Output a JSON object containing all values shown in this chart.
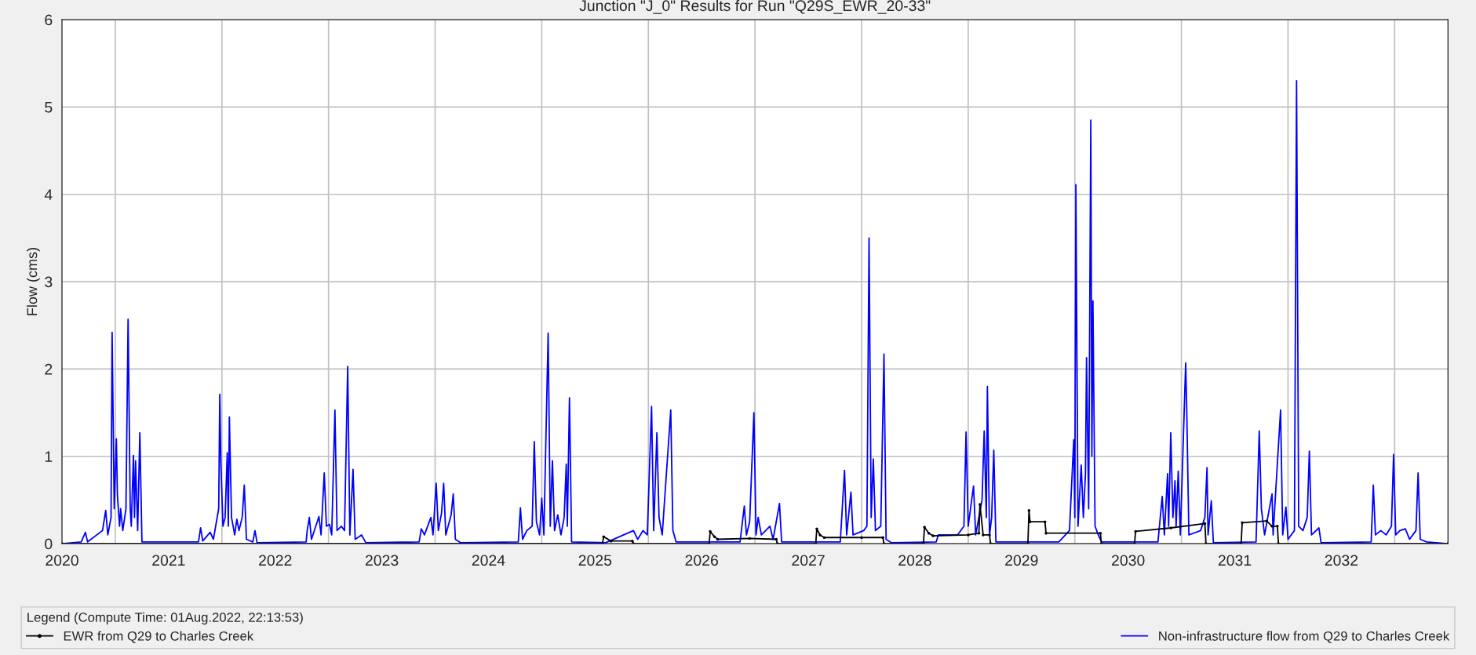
{
  "chart_data": {
    "type": "line",
    "title": "Junction \"J_0\" Results for Run \"Q29S_EWR_20-33\"",
    "ylabel": "Flow (cms)",
    "xlim": [
      2020.5,
      2033.5
    ],
    "ylim": [
      0,
      6
    ],
    "yticks": [
      0,
      1,
      2,
      3,
      4,
      5,
      6
    ],
    "xticks": [
      {
        "value": 2020.5,
        "label": "2020"
      },
      {
        "value": 2021,
        "label": null
      },
      {
        "value": 2021.5,
        "label": "2021"
      },
      {
        "value": 2022,
        "label": null
      },
      {
        "value": 2022.5,
        "label": "2022"
      },
      {
        "value": 2023,
        "label": null
      },
      {
        "value": 2023.5,
        "label": "2023"
      },
      {
        "value": 2024,
        "label": null
      },
      {
        "value": 2024.5,
        "label": "2024"
      },
      {
        "value": 2025,
        "label": null
      },
      {
        "value": 2025.5,
        "label": "2025"
      },
      {
        "value": 2026,
        "label": null
      },
      {
        "value": 2026.5,
        "label": "2026"
      },
      {
        "value": 2027,
        "label": null
      },
      {
        "value": 2027.5,
        "label": "2027"
      },
      {
        "value": 2028,
        "label": null
      },
      {
        "value": 2028.5,
        "label": "2028"
      },
      {
        "value": 2029,
        "label": null
      },
      {
        "value": 2029.5,
        "label": "2029"
      },
      {
        "value": 2030,
        "label": null
      },
      {
        "value": 2030.5,
        "label": "2030"
      },
      {
        "value": 2031,
        "label": null
      },
      {
        "value": 2031.5,
        "label": "2031"
      },
      {
        "value": 2032,
        "label": null
      },
      {
        "value": 2032.5,
        "label": "2032"
      },
      {
        "value": 2033,
        "label": null
      }
    ],
    "grid": true,
    "legend": "bottom",
    "legend_title": "Legend (Compute Time: 01Aug.2022, 22:13:53)",
    "series": [
      {
        "name": "Non-infrastructure flow from Q29 to Charles Creek",
        "color": "#0000ff",
        "marker": "none",
        "x": [
          2020.5,
          2020.68,
          2020.72,
          2020.74,
          2020.88,
          2020.91,
          2020.93,
          2020.96,
          2020.97,
          2020.99,
          2021.01,
          2021.02,
          2021.04,
          2021.05,
          2021.07,
          2021.1,
          2021.12,
          2021.14,
          2021.15,
          2021.17,
          2021.18,
          2021.19,
          2021.21,
          2021.23,
          2021.25,
          2021.78,
          2021.8,
          2021.82,
          2021.89,
          2021.92,
          2021.97,
          2021.98,
          2021.99,
          2022.01,
          2022.03,
          2022.05,
          2022.06,
          2022.07,
          2022.09,
          2022.12,
          2022.14,
          2022.16,
          2022.19,
          2022.21,
          2022.23,
          2022.29,
          2022.31,
          2022.33,
          2022.79,
          2022.8,
          2022.82,
          2022.84,
          2022.91,
          2022.93,
          2022.96,
          2022.98,
          2023.01,
          2023.03,
          2023.06,
          2023.08,
          2023.12,
          2023.15,
          2023.18,
          2023.2,
          2023.23,
          2023.25,
          2023.31,
          2023.35,
          2023.85,
          2023.87,
          2023.9,
          2023.96,
          2023.98,
          2024.0,
          2024.01,
          2024.03,
          2024.06,
          2024.08,
          2024.1,
          2024.15,
          2024.17,
          2024.19,
          2024.24,
          2024.78,
          2024.8,
          2024.82,
          2024.86,
          2024.91,
          2024.93,
          2024.95,
          2024.98,
          2025.0,
          2025.02,
          2025.06,
          2025.08,
          2025.1,
          2025.12,
          2025.15,
          2025.18,
          2025.21,
          2025.23,
          2025.24,
          2025.26,
          2025.28,
          2025.6,
          2025.86,
          2025.9,
          2025.95,
          2025.99,
          2026.03,
          2026.05,
          2026.08,
          2026.1,
          2026.13,
          2026.21,
          2026.23,
          2026.26,
          2026.86,
          2026.9,
          2026.92,
          2026.95,
          2026.99,
          2027.01,
          2027.03,
          2027.06,
          2027.14,
          2027.17,
          2027.23,
          2027.25,
          2027.8,
          2027.84,
          2027.86,
          2027.9,
          2027.92,
          2028.02,
          2028.05,
          2028.07,
          2028.09,
          2028.11,
          2028.13,
          2028.18,
          2028.21,
          2028.23,
          2028.28,
          2028.7,
          2028.72,
          2028.9,
          2028.96,
          2028.98,
          2029.0,
          2029.05,
          2029.07,
          2029.13,
          2029.15,
          2029.17,
          2029.18,
          2029.2,
          2029.22,
          2029.24,
          2029.26,
          2029.85,
          2029.95,
          2029.99,
          2030.0,
          2030.01,
          2030.03,
          2030.06,
          2030.08,
          2030.1,
          2030.11,
          2030.13,
          2030.15,
          2030.16,
          2030.17,
          2030.19,
          2030.22,
          2030.25,
          2030.78,
          2030.82,
          2030.84,
          2030.87,
          2030.88,
          2030.9,
          2030.92,
          2030.94,
          2030.95,
          2030.97,
          2030.99,
          2031.04,
          2031.05,
          2031.07,
          2031.18,
          2031.22,
          2031.24,
          2031.25,
          2031.28,
          2031.3,
          2031.7,
          2031.73,
          2031.75,
          2031.78,
          2031.85,
          2031.86,
          2031.93,
          2031.95,
          2031.98,
          2032.0,
          2032.06,
          2032.08,
          2032.1,
          2032.14,
          2032.18,
          2032.2,
          2032.22,
          2032.29,
          2032.31,
          2032.78,
          2032.8,
          2032.82,
          2032.87,
          2032.92,
          2032.97,
          2032.99,
          2033.01,
          2033.05,
          2033.1,
          2033.14,
          2033.2,
          2033.22,
          2033.24,
          2033.3,
          2033.5
        ],
        "values": [
          0,
          0.02,
          0.13,
          0.02,
          0.15,
          0.38,
          0.1,
          0.3,
          2.42,
          0.4,
          1.2,
          0.55,
          0.2,
          0.4,
          0.15,
          0.4,
          2.57,
          0.4,
          0.2,
          1.01,
          0.3,
          0.95,
          0.15,
          1.27,
          0.02,
          0.02,
          0.18,
          0.03,
          0.13,
          0.05,
          0.4,
          1.71,
          0.93,
          0.2,
          0.3,
          1.04,
          0.2,
          1.45,
          0.3,
          0.1,
          0.28,
          0.15,
          0.3,
          0.67,
          0.05,
          0.02,
          0.15,
          0.01,
          0.02,
          0.15,
          0.3,
          0.05,
          0.31,
          0.1,
          0.81,
          0.2,
          0.22,
          0.1,
          1.53,
          0.15,
          0.2,
          0.15,
          2.03,
          0.1,
          0.85,
          0.05,
          0.1,
          0.01,
          0.02,
          0.17,
          0.1,
          0.3,
          0.1,
          0.5,
          0.69,
          0.15,
          0.35,
          0.69,
          0.1,
          0.33,
          0.57,
          0.05,
          0.01,
          0.02,
          0.41,
          0.05,
          0.15,
          0.2,
          1.17,
          0.25,
          0.1,
          0.52,
          0.1,
          2.41,
          0.2,
          0.95,
          0.15,
          0.33,
          0.1,
          0.3,
          0.91,
          0.2,
          1.67,
          0.02,
          0.01,
          0.15,
          0.05,
          0.15,
          0.1,
          1.57,
          0.15,
          1.27,
          0.3,
          0.1,
          1.53,
          0.15,
          0.02,
          0.02,
          0.43,
          0.1,
          0.25,
          1.5,
          0.1,
          0.3,
          0.1,
          0.2,
          0.05,
          0.46,
          0.02,
          0.02,
          0.84,
          0.1,
          0.59,
          0.1,
          0.15,
          0.2,
          3.5,
          0.3,
          0.97,
          0.15,
          0.2,
          2.17,
          0.05,
          0.01,
          0.02,
          0.1,
          0.1,
          0.2,
          1.28,
          0.2,
          0.66,
          0.1,
          0.5,
          1.29,
          0.3,
          1.8,
          0.1,
          0.3,
          1.07,
          0.02,
          0.02,
          0.15,
          1.19,
          0.3,
          4.11,
          0.2,
          0.9,
          0.3,
          0.8,
          2.13,
          0.4,
          4.85,
          1.0,
          2.78,
          0.2,
          0.1,
          0.02,
          0.02,
          0.54,
          0.1,
          0.8,
          0.2,
          1.27,
          0.3,
          0.72,
          0.2,
          0.83,
          0.1,
          2.07,
          1.53,
          0.1,
          0.15,
          0.3,
          0.87,
          0.1,
          0.49,
          0.01,
          0.02,
          1.29,
          0.4,
          0.1,
          0.57,
          0.1,
          1.53,
          0.1,
          0.42,
          0.05,
          0.15,
          5.3,
          0.2,
          0.15,
          0.3,
          1.06,
          0.1,
          0.18,
          0.01,
          0.02,
          0.67,
          0.1,
          0.15,
          0.1,
          0.2,
          1.02,
          0.1,
          0.15,
          0.17,
          0.05,
          0.15,
          0.81,
          0.05,
          0.02,
          0
        ]
      },
      {
        "name": "EWR from Q29 to Charles Creek",
        "color": "#000000",
        "marker": "circle",
        "x": [
          2020.5,
          2025.57,
          2025.58,
          2025.65,
          2025.85,
          2025.86,
          2026.57,
          2026.58,
          2026.62,
          2026.65,
          2026.95,
          2027.2,
          2027.21,
          2027.57,
          2027.58,
          2027.61,
          2027.65,
          2028.0,
          2028.2,
          2028.21,
          2028.58,
          2028.59,
          2028.63,
          2028.67,
          2029.0,
          2029.1,
          2029.11,
          2029.14,
          2029.2,
          2029.21,
          2029.56,
          2029.57,
          2029.58,
          2029.72,
          2029.73,
          2030.24,
          2030.25,
          2030.56,
          2030.57,
          2030.9,
          2031.22,
          2031.23,
          2031.56,
          2031.57,
          2031.8,
          2031.85,
          2031.9,
          2031.91,
          2033.5
        ],
        "values": [
          0,
          0,
          0.08,
          0.03,
          0.03,
          0,
          0,
          0.14,
          0.08,
          0.05,
          0.06,
          0.05,
          0,
          0,
          0.17,
          0.1,
          0.07,
          0.07,
          0.07,
          0,
          0,
          0.19,
          0.12,
          0.09,
          0.1,
          0.12,
          0.45,
          0.1,
          0.1,
          0,
          0,
          0.38,
          0.25,
          0.25,
          0.12,
          0.12,
          0,
          0,
          0.14,
          0.18,
          0.23,
          0,
          0,
          0.24,
          0.26,
          0.2,
          0.2,
          0,
          0
        ]
      }
    ]
  }
}
